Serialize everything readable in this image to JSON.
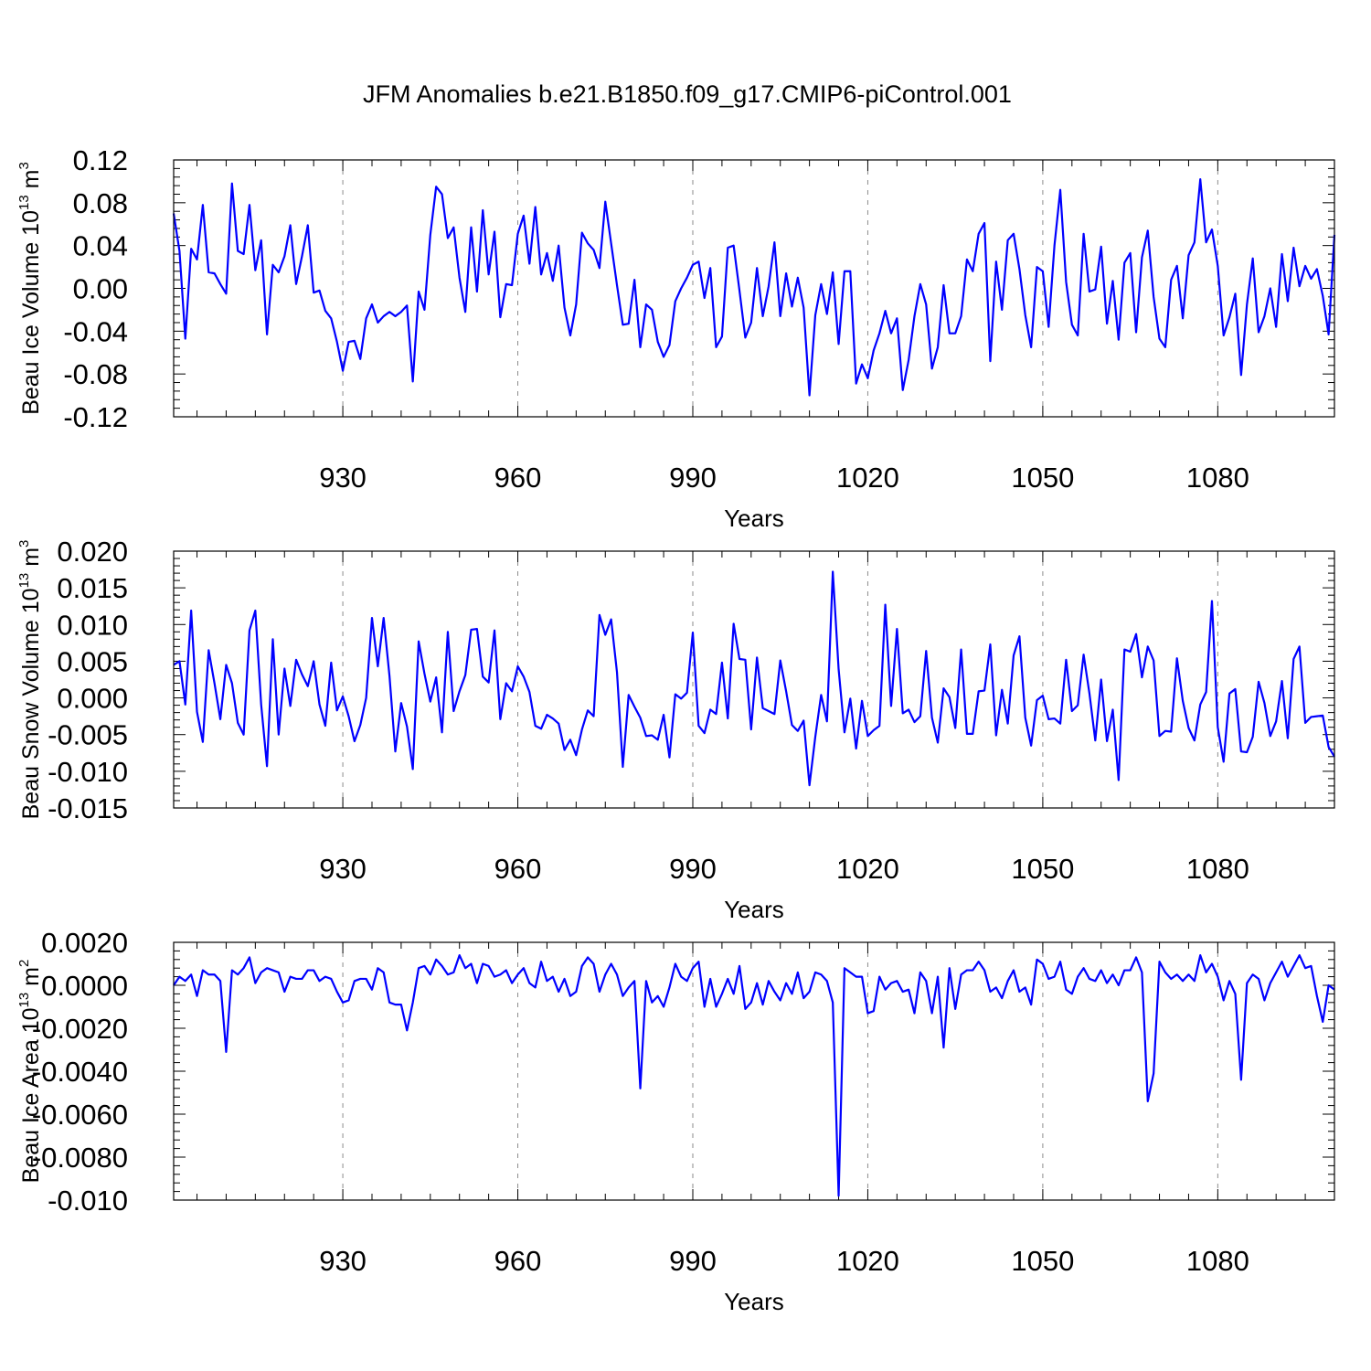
{
  "title": "JFM Anomalies b.e21.B1850.f09_g17.CMIP6-piControl.001",
  "colors": {
    "line": "#0000ff",
    "axes": "#000000",
    "grid": "#8c8c8c"
  },
  "chart_data": [
    {
      "type": "line",
      "name": "Beau Ice Volume",
      "ylabel": {
        "main": "Beau Ice Volume 10",
        "sup1": "13",
        "mid": " m",
        "sup2": "3"
      },
      "xlabel": "Years",
      "x_start": 901,
      "x_step": 1,
      "xlim": [
        901,
        1100
      ],
      "x_ticks": [
        930,
        960,
        990,
        1020,
        1050,
        1080
      ],
      "x_tick_labels": [
        "930",
        "960",
        "990",
        "1020",
        "1050",
        "1080"
      ],
      "ylim": [
        -0.12,
        0.12
      ],
      "y_ticks": [
        -0.12,
        -0.08,
        -0.04,
        0.0,
        0.04,
        0.08,
        0.12
      ],
      "y_tick_labels": [
        "-0.12",
        "-0.08",
        "-0.04",
        "0.00",
        "0.04",
        "0.08",
        "0.12"
      ],
      "grid_x": true,
      "values": [
        0.07,
        0.035,
        -0.047,
        0.037,
        0.027,
        0.078,
        0.015,
        0.014,
        0.004,
        -0.005,
        0.098,
        0.035,
        0.032,
        0.078,
        0.017,
        0.045,
        -0.043,
        0.022,
        0.015,
        0.03,
        0.059,
        0.004,
        0.03,
        0.059,
        -0.004,
        -0.002,
        -0.021,
        -0.028,
        -0.05,
        -0.077,
        -0.05,
        -0.049,
        -0.066,
        -0.028,
        -0.015,
        -0.032,
        -0.026,
        -0.022,
        -0.026,
        -0.022,
        -0.016,
        -0.087,
        -0.003,
        -0.02,
        0.05,
        0.095,
        0.088,
        0.047,
        0.057,
        0.01,
        -0.022,
        0.057,
        -0.003,
        0.073,
        0.013,
        0.053,
        -0.027,
        0.004,
        0.003,
        0.051,
        0.068,
        0.023,
        0.076,
        0.013,
        0.033,
        0.007,
        0.04,
        -0.018,
        -0.044,
        -0.015,
        0.052,
        0.042,
        0.036,
        0.019,
        0.081,
        0.042,
        0.003,
        -0.034,
        -0.033,
        0.008,
        -0.055,
        -0.015,
        -0.02,
        -0.05,
        -0.064,
        -0.053,
        -0.012,
        0.0,
        0.01,
        0.022,
        0.025,
        -0.009,
        0.019,
        -0.055,
        -0.045,
        0.038,
        0.04,
        -0.002,
        -0.046,
        -0.032,
        0.019,
        -0.026,
        0.002,
        0.043,
        -0.026,
        0.014,
        -0.017,
        0.01,
        -0.018,
        -0.1,
        -0.025,
        0.004,
        -0.024,
        0.015,
        -0.052,
        0.016,
        0.016,
        -0.089,
        -0.071,
        -0.084,
        -0.058,
        -0.042,
        -0.021,
        -0.042,
        -0.028,
        -0.095,
        -0.067,
        -0.026,
        0.004,
        -0.015,
        -0.075,
        -0.055,
        0.003,
        -0.042,
        -0.042,
        -0.026,
        0.027,
        0.016,
        0.051,
        0.061,
        -0.068,
        0.025,
        -0.02,
        0.045,
        0.051,
        0.018,
        -0.025,
        -0.055,
        0.02,
        0.016,
        -0.036,
        0.04,
        0.092,
        0.006,
        -0.034,
        -0.044,
        0.051,
        -0.003,
        -0.001,
        0.039,
        -0.033,
        0.007,
        -0.048,
        0.024,
        0.033,
        -0.041,
        0.029,
        0.054,
        -0.008,
        -0.047,
        -0.055,
        0.008,
        0.021,
        -0.028,
        0.031,
        0.043,
        0.102,
        0.043,
        0.055,
        0.021,
        -0.044,
        -0.027,
        -0.005,
        -0.081,
        -0.015,
        0.028,
        -0.041,
        -0.026,
        0.0,
        -0.036,
        0.032,
        -0.012,
        0.038,
        0.002,
        0.021,
        0.009,
        0.018,
        -0.007,
        -0.043,
        0.05
      ]
    },
    {
      "type": "line",
      "name": "Beau Snow Volume",
      "ylabel": {
        "main": "Beau Snow Volume 10",
        "sup1": "13",
        "mid": " m",
        "sup2": "3"
      },
      "xlabel": "Years",
      "x_start": 901,
      "x_step": 1,
      "xlim": [
        901,
        1100
      ],
      "x_ticks": [
        930,
        960,
        990,
        1020,
        1050,
        1080
      ],
      "x_tick_labels": [
        "930",
        "960",
        "990",
        "1020",
        "1050",
        "1080"
      ],
      "ylim": [
        -0.015,
        0.02
      ],
      "y_ticks": [
        -0.015,
        -0.01,
        -0.005,
        0.0,
        0.005,
        0.01,
        0.015,
        0.02
      ],
      "y_tick_labels": [
        "-0.015",
        "-0.010",
        "-0.005",
        "0.000",
        "0.005",
        "0.010",
        "0.015",
        "0.020"
      ],
      "grid_x": true,
      "values": [
        0.0045,
        0.005,
        -0.0009,
        0.0119,
        -0.0019,
        -0.006,
        0.0065,
        0.002,
        -0.0029,
        0.0045,
        0.002,
        -0.0034,
        -0.005,
        0.0092,
        0.0119,
        -0.0009,
        -0.0093,
        0.008,
        -0.005,
        0.004,
        -0.0011,
        0.0052,
        0.0032,
        0.0016,
        0.005,
        -0.0009,
        -0.0038,
        0.0048,
        -0.0017,
        0.0002,
        -0.0025,
        -0.0059,
        -0.0037,
        0.0,
        0.0109,
        0.0043,
        0.0109,
        0.003,
        -0.0073,
        -0.0007,
        -0.0039,
        -0.0097,
        0.0077,
        0.0033,
        -0.0005,
        0.0028,
        -0.0047,
        0.009,
        -0.0018,
        0.0009,
        0.0031,
        0.0093,
        0.0094,
        0.0029,
        0.0021,
        0.0092,
        -0.0029,
        0.002,
        0.0009,
        0.0043,
        0.0029,
        0.0008,
        -0.0038,
        -0.0042,
        -0.0023,
        -0.0028,
        -0.0035,
        -0.0071,
        -0.0057,
        -0.0078,
        -0.0043,
        -0.0017,
        -0.0025,
        0.0113,
        0.0086,
        0.0107,
        0.0035,
        -0.0094,
        0.0004,
        -0.0012,
        -0.0027,
        -0.0052,
        -0.0051,
        -0.0057,
        -0.0023,
        -0.0081,
        0.0005,
        -0.0001,
        0.0007,
        0.0089,
        -0.0038,
        -0.0048,
        -0.0016,
        -0.0022,
        0.0048,
        -0.0028,
        0.0101,
        0.0053,
        0.0052,
        -0.0043,
        0.0055,
        -0.0014,
        -0.0018,
        -0.0022,
        0.0051,
        0.0009,
        -0.0037,
        -0.0045,
        -0.0031,
        -0.0119,
        -0.0053,
        0.0004,
        -0.0032,
        0.0172,
        0.0039,
        -0.0047,
        -0.0001,
        -0.0069,
        -0.0004,
        -0.0052,
        -0.0044,
        -0.0038,
        0.0127,
        -0.0011,
        0.0094,
        -0.0021,
        -0.0016,
        -0.0033,
        -0.0025,
        0.0064,
        -0.0027,
        -0.0061,
        0.0013,
        0.0001,
        -0.0041,
        0.0066,
        -0.0049,
        -0.0049,
        0.0009,
        0.001,
        0.0073,
        -0.0051,
        0.0011,
        -0.0035,
        0.0058,
        0.0084,
        -0.0027,
        -0.0065,
        -0.0003,
        0.0003,
        -0.0029,
        -0.0028,
        -0.0035,
        0.0052,
        -0.0018,
        -0.001,
        0.0059,
        0.0006,
        -0.0058,
        0.0025,
        -0.0059,
        -0.0016,
        -0.0112,
        0.0066,
        0.0063,
        0.0087,
        0.0028,
        0.007,
        0.0051,
        -0.0052,
        -0.0045,
        -0.0046,
        0.0054,
        -0.0004,
        -0.0041,
        -0.0058,
        -0.0009,
        0.0008,
        0.0132,
        -0.004,
        -0.0087,
        0.0006,
        0.0012,
        -0.0073,
        -0.0074,
        -0.0053,
        0.0022,
        -0.0007,
        -0.0052,
        -0.0032,
        0.0023,
        -0.0055,
        0.0053,
        0.007,
        -0.0034,
        -0.0026,
        -0.0025,
        -0.0024,
        -0.0067,
        -0.008
      ]
    },
    {
      "type": "line",
      "name": "Beau Ice Area",
      "ylabel": {
        "main": "Beau Ice Area 10",
        "sup1": "13",
        "mid": " m",
        "sup2": "2"
      },
      "xlabel": "Years",
      "x_start": 901,
      "x_step": 1,
      "xlim": [
        901,
        1100
      ],
      "x_ticks": [
        930,
        960,
        990,
        1020,
        1050,
        1080
      ],
      "x_tick_labels": [
        "930",
        "960",
        "990",
        "1020",
        "1050",
        "1080"
      ],
      "ylim": [
        -0.01,
        0.002
      ],
      "y_ticks": [
        -0.01,
        -0.008,
        -0.006,
        -0.004,
        -0.002,
        0.0,
        0.002
      ],
      "y_tick_labels": [
        "-0.010",
        "-0.0080",
        "-0.0060",
        "-0.0040",
        "-0.0020",
        "0.0000",
        "0.0020"
      ],
      "grid_x": true,
      "values": [
        0.0,
        0.0004,
        0.0002,
        0.0005,
        -0.0005,
        0.0007,
        0.0005,
        0.0005,
        0.0002,
        -0.0031,
        0.0007,
        0.0005,
        0.0008,
        0.0013,
        0.0001,
        0.0006,
        0.0008,
        0.0007,
        0.0006,
        -0.0003,
        0.0004,
        0.0003,
        0.0003,
        0.0007,
        0.0007,
        0.0002,
        0.0004,
        0.0003,
        -0.0003,
        -0.0008,
        -0.0007,
        0.0002,
        0.0003,
        0.0003,
        -0.0002,
        0.0008,
        0.0006,
        -0.0008,
        -0.0009,
        -0.0009,
        -0.0021,
        -0.0008,
        0.0008,
        0.0009,
        0.0005,
        0.0012,
        0.0009,
        0.0005,
        0.0006,
        0.0014,
        0.0008,
        0.001,
        0.0001,
        0.001,
        0.0009,
        0.0004,
        0.0005,
        0.0007,
        0.0001,
        0.0005,
        0.0008,
        0.0001,
        -0.0001,
        0.0011,
        0.0002,
        0.0004,
        -0.0003,
        0.0003,
        -0.0005,
        -0.0003,
        0.0009,
        0.0013,
        0.001,
        -0.0003,
        0.0005,
        0.001,
        0.0005,
        -0.0005,
        -0.0001,
        0.0002,
        -0.0048,
        0.0002,
        -0.0008,
        -0.0005,
        -0.001,
        -0.0001,
        0.001,
        0.0004,
        0.0002,
        0.0008,
        0.0011,
        -0.001,
        0.0003,
        -0.001,
        -0.0004,
        0.0003,
        -0.0004,
        0.0009,
        -0.0011,
        -0.0008,
        0.0001,
        -0.0009,
        0.0002,
        -0.0003,
        -0.0007,
        0.0001,
        -0.0004,
        0.0006,
        -0.0006,
        -0.0003,
        0.0006,
        0.0005,
        0.0002,
        -0.0008,
        -0.0098,
        0.0008,
        0.0006,
        0.0004,
        0.0004,
        -0.0013,
        -0.0012,
        0.0004,
        -0.0002,
        0.0001,
        0.0002,
        -0.0003,
        -0.0002,
        -0.0013,
        0.0006,
        0.0002,
        -0.0013,
        0.0004,
        -0.0029,
        0.0008,
        -0.0011,
        0.0005,
        0.0007,
        0.0007,
        0.0011,
        0.0007,
        -0.0003,
        -0.0001,
        -0.0006,
        0.0002,
        0.0007,
        -0.0003,
        -0.0001,
        -0.0009,
        0.0012,
        0.001,
        0.0003,
        0.0004,
        0.0011,
        -0.0002,
        -0.0004,
        0.0004,
        0.0008,
        0.0003,
        0.0002,
        0.0007,
        0.0001,
        0.0005,
        0.0,
        0.0007,
        0.0007,
        0.0013,
        0.0006,
        -0.0054,
        -0.0041,
        0.0011,
        0.0006,
        0.0003,
        0.0005,
        0.0002,
        0.0005,
        0.0002,
        0.0014,
        0.0006,
        0.001,
        0.0004,
        -0.0007,
        0.0002,
        -0.0004,
        -0.0044,
        0.0001,
        0.0005,
        0.0003,
        -0.0007,
        0.0001,
        0.0006,
        0.0011,
        0.0004,
        0.0009,
        0.0014,
        0.0008,
        0.0009,
        -0.0005,
        -0.0017,
        0.0,
        -0.0002
      ]
    }
  ]
}
